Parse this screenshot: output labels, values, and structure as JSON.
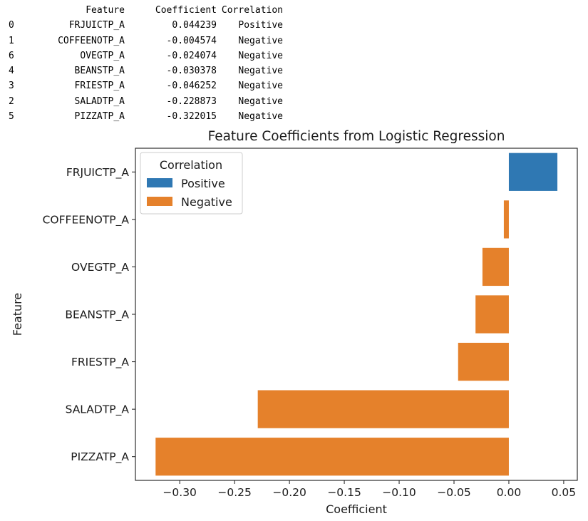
{
  "table": {
    "headers": [
      "",
      "Feature",
      "Coefficient",
      "Correlation"
    ],
    "rows": [
      {
        "index": "0",
        "feature": "FRJUICTP_A",
        "coefficient": "0.044239",
        "correlation": "Positive"
      },
      {
        "index": "1",
        "feature": "COFFEENOTP_A",
        "coefficient": "-0.004574",
        "correlation": "Negative"
      },
      {
        "index": "6",
        "feature": "OVEGTP_A",
        "coefficient": "-0.024074",
        "correlation": "Negative"
      },
      {
        "index": "4",
        "feature": "BEANSTP_A",
        "coefficient": "-0.030378",
        "correlation": "Negative"
      },
      {
        "index": "3",
        "feature": "FRIESTP_A",
        "coefficient": "-0.046252",
        "correlation": "Negative"
      },
      {
        "index": "2",
        "feature": "SALADTP_A",
        "coefficient": "-0.228873",
        "correlation": "Negative"
      },
      {
        "index": "5",
        "feature": "PIZZATP_A",
        "coefficient": "-0.322015",
        "correlation": "Negative"
      }
    ]
  },
  "chart_data": {
    "type": "bar",
    "orientation": "horizontal",
    "title": "Feature Coefficients from Logistic Regression",
    "xlabel": "Coefficient",
    "ylabel": "Feature",
    "categories": [
      "FRJUICTP_A",
      "COFFEENOTP_A",
      "OVEGTP_A",
      "BEANSTP_A",
      "FRIESTP_A",
      "SALADTP_A",
      "PIZZATP_A"
    ],
    "values": [
      0.044239,
      -0.004574,
      -0.024074,
      -0.030378,
      -0.046252,
      -0.228873,
      -0.322015
    ],
    "hue": [
      "Positive",
      "Negative",
      "Negative",
      "Negative",
      "Negative",
      "Negative",
      "Negative"
    ],
    "xlim": [
      -0.3404,
      0.0624
    ],
    "xticks": [
      -0.3,
      -0.25,
      -0.2,
      -0.15,
      -0.1,
      -0.05,
      0.0,
      0.05
    ],
    "xtick_labels": [
      "−0.30",
      "−0.25",
      "−0.20",
      "−0.15",
      "−0.10",
      "−0.05",
      "0.00",
      "0.05"
    ],
    "grid": false,
    "legend": {
      "title": "Correlation",
      "placement": "upper-left",
      "entries": [
        {
          "label": "Positive",
          "color": "#2f78b3"
        },
        {
          "label": "Negative",
          "color": "#e5812b"
        }
      ]
    },
    "colors": {
      "Positive": "#2f78b3",
      "Negative": "#e5812b"
    }
  }
}
